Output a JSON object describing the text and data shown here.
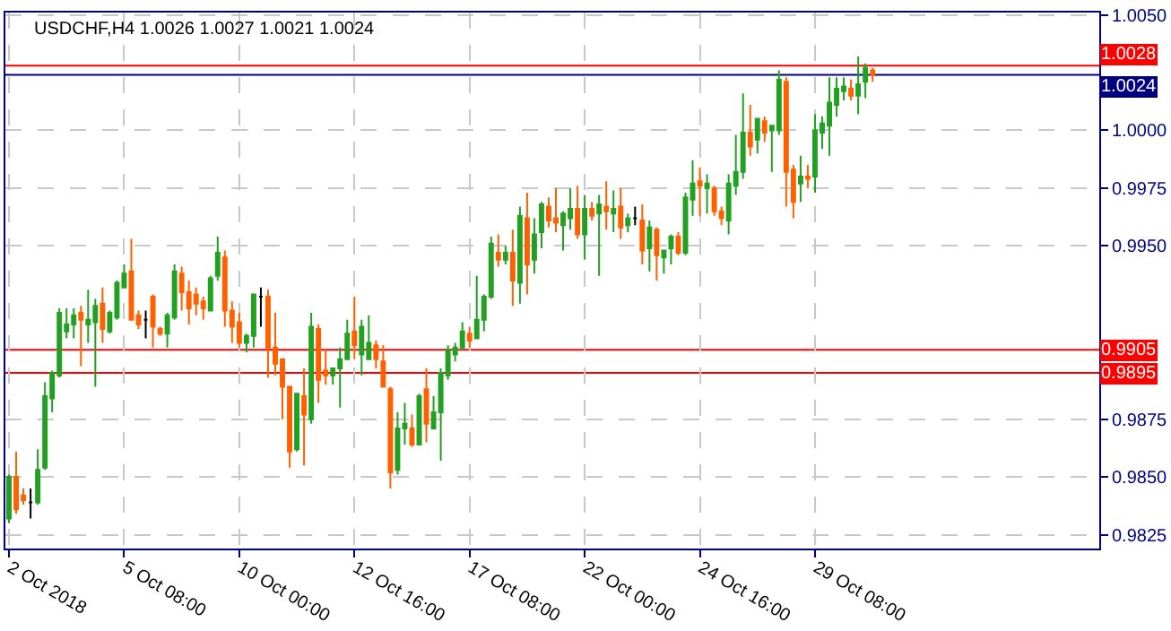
{
  "chart_data": {
    "type": "candlestick",
    "title": "USDCHF,H4 1.0026 1.0027 1.0021 1.0024",
    "categories": [
      "2 Oct 2018",
      null,
      null,
      null,
      null,
      null,
      null,
      null,
      null,
      null,
      null,
      null,
      null,
      null,
      null,
      null,
      "5 Oct 08:00",
      null,
      null,
      null,
      null,
      null,
      null,
      null,
      null,
      null,
      null,
      null,
      null,
      null,
      null,
      null,
      "10 Oct 00:00",
      null,
      null,
      null,
      null,
      null,
      null,
      null,
      null,
      null,
      null,
      null,
      null,
      null,
      null,
      null,
      "12 Oct 16:00",
      null,
      null,
      null,
      null,
      null,
      null,
      null,
      null,
      null,
      null,
      null,
      null,
      null,
      null,
      null,
      "17 Oct 08:00",
      null,
      null,
      null,
      null,
      null,
      null,
      null,
      null,
      null,
      null,
      null,
      null,
      null,
      null,
      null,
      "22 Oct 00:00",
      null,
      null,
      null,
      null,
      null,
      null,
      null,
      null,
      null,
      null,
      null,
      null,
      null,
      null,
      null,
      "24 Oct 16:00",
      null,
      null,
      null,
      null,
      null,
      null,
      null,
      null,
      null,
      null,
      null,
      null,
      null,
      null,
      null,
      "29 Oct 08:00",
      null,
      null,
      null,
      null,
      null,
      null,
      null,
      null,
      null,
      null,
      null,
      null,
      null,
      null,
      null,
      null,
      null,
      null,
      null,
      null,
      null,
      null,
      null,
      null,
      null,
      null,
      null,
      null,
      null,
      null,
      null,
      null,
      null,
      null,
      null,
      null,
      null,
      null,
      null
    ],
    "ohlc": [
      [
        0.9832,
        0.9851,
        0.983,
        0.985
      ],
      [
        0.985,
        0.9861,
        0.9834,
        0.9836
      ],
      [
        0.9842,
        0.9845,
        0.9838,
        0.984
      ],
      [
        0.9839,
        0.9845,
        0.9832,
        0.9839
      ],
      [
        0.9839,
        0.9862,
        0.9838,
        0.9853
      ],
      [
        0.9854,
        0.9891,
        0.9853,
        0.9885
      ],
      [
        0.9884,
        0.9896,
        0.9878,
        0.9895
      ],
      [
        0.9894,
        0.9923,
        0.9893,
        0.9921
      ],
      [
        0.9913,
        0.9923,
        0.991,
        0.9916
      ],
      [
        0.9916,
        0.9923,
        0.991,
        0.992
      ],
      [
        0.9921,
        0.9924,
        0.9898,
        0.9918
      ],
      [
        0.9916,
        0.9931,
        0.9908,
        0.9918
      ],
      [
        0.9917,
        0.9927,
        0.9889,
        0.9924
      ],
      [
        0.9925,
        0.9932,
        0.9908,
        0.9914
      ],
      [
        0.9913,
        0.9922,
        0.9912,
        0.9921
      ],
      [
        0.9919,
        0.9935,
        0.9918,
        0.9934
      ],
      [
        0.9932,
        0.9942,
        0.9932,
        0.9938
      ],
      [
        0.9939,
        0.9953,
        0.9918,
        0.9918
      ],
      [
        0.992,
        0.9922,
        0.9914,
        0.9916
      ],
      [
        0.9918,
        0.9922,
        0.991,
        0.9918
      ],
      [
        0.9928,
        0.9929,
        0.9906,
        0.9915
      ],
      [
        0.9914,
        0.9915,
        0.9911,
        0.9912
      ],
      [
        0.9912,
        0.9921,
        0.9906,
        0.992
      ],
      [
        0.9919,
        0.9942,
        0.9918,
        0.9939
      ],
      [
        0.9938,
        0.9941,
        0.9922,
        0.993
      ],
      [
        0.993,
        0.9935,
        0.9916,
        0.9923
      ],
      [
        0.9929,
        0.9932,
        0.992,
        0.9925
      ],
      [
        0.9926,
        0.9928,
        0.9918,
        0.9923
      ],
      [
        0.9922,
        0.9937,
        0.9922,
        0.9936
      ],
      [
        0.9937,
        0.9954,
        0.9935,
        0.9947
      ],
      [
        0.9945,
        0.9948,
        0.9915,
        0.9922
      ],
      [
        0.9922,
        0.9926,
        0.9908,
        0.9915
      ],
      [
        0.9917,
        0.9921,
        0.9906,
        0.9908
      ],
      [
        0.9908,
        0.9912,
        0.9904,
        0.9911
      ],
      [
        0.9911,
        0.9929,
        0.9906,
        0.9929
      ],
      [
        0.9928,
        0.9932,
        0.9915,
        0.9928
      ],
      [
        0.9928,
        0.9931,
        0.9893,
        0.9906
      ],
      [
        0.9906,
        0.9921,
        0.9894,
        0.9899
      ],
      [
        0.9901,
        0.9901,
        0.9875,
        0.9889
      ],
      [
        0.9889,
        0.9889,
        0.9854,
        0.9861
      ],
      [
        0.9862,
        0.9886,
        0.9861,
        0.9886
      ],
      [
        0.9885,
        0.9897,
        0.9855,
        0.9877
      ],
      [
        0.9875,
        0.9921,
        0.9873,
        0.9915
      ],
      [
        0.9914,
        0.9916,
        0.9882,
        0.9892
      ],
      [
        0.9896,
        0.9905,
        0.989,
        0.9894
      ],
      [
        0.9894,
        0.9897,
        0.989,
        0.9897
      ],
      [
        0.9897,
        0.9906,
        0.988,
        0.9901
      ],
      [
        0.9901,
        0.9918,
        0.9901,
        0.9912
      ],
      [
        0.9913,
        0.9928,
        0.9901,
        0.9907
      ],
      [
        0.9903,
        0.9918,
        0.9894,
        0.9915
      ],
      [
        0.9901,
        0.992,
        0.9901,
        0.9908
      ],
      [
        0.9907,
        0.9909,
        0.9897,
        0.9901
      ],
      [
        0.99,
        0.9907,
        0.9889,
        0.9889
      ],
      [
        0.9888,
        0.9889,
        0.9845,
        0.9852
      ],
      [
        0.9853,
        0.9878,
        0.9851,
        0.9871
      ],
      [
        0.9871,
        0.9882,
        0.9864,
        0.9873
      ],
      [
        0.9871,
        0.9877,
        0.9863,
        0.9864
      ],
      [
        0.9864,
        0.9886,
        0.9864,
        0.9885
      ],
      [
        0.9888,
        0.9897,
        0.9865,
        0.9873
      ],
      [
        0.9871,
        0.9885,
        0.9871,
        0.9878
      ],
      [
        0.9878,
        0.9897,
        0.9857,
        0.9895
      ],
      [
        0.9894,
        0.9907,
        0.9892,
        0.9905
      ],
      [
        0.9903,
        0.9908,
        0.99,
        0.9906
      ],
      [
        0.9906,
        0.9917,
        0.9905,
        0.9913
      ],
      [
        0.9912,
        0.9915,
        0.9906,
        0.9909
      ],
      [
        0.991,
        0.9937,
        0.991,
        0.9918
      ],
      [
        0.9918,
        0.9929,
        0.9913,
        0.9928
      ],
      [
        0.9928,
        0.9954,
        0.9927,
        0.9951
      ],
      [
        0.9947,
        0.9955,
        0.9941,
        0.9944
      ],
      [
        0.9944,
        0.995,
        0.9942,
        0.9947
      ],
      [
        0.9947,
        0.9957,
        0.9924,
        0.9935
      ],
      [
        0.9934,
        0.9967,
        0.9925,
        0.9963
      ],
      [
        0.9962,
        0.9973,
        0.9929,
        0.9942
      ],
      [
        0.9944,
        0.9962,
        0.9938,
        0.9955
      ],
      [
        0.9956,
        0.9969,
        0.9949,
        0.9968
      ],
      [
        0.9967,
        0.9971,
        0.9958,
        0.9961
      ],
      [
        0.9962,
        0.9975,
        0.9956,
        0.996
      ],
      [
        0.9959,
        0.9965,
        0.9948,
        0.9964
      ],
      [
        0.9962,
        0.9975,
        0.9957,
        0.9966
      ],
      [
        0.9966,
        0.9976,
        0.9953,
        0.9955
      ],
      [
        0.9955,
        0.9972,
        0.9944,
        0.9966
      ],
      [
        0.9966,
        0.9969,
        0.9961,
        0.9963
      ],
      [
        0.9964,
        0.9972,
        0.9937,
        0.9968
      ],
      [
        0.9967,
        0.9978,
        0.9957,
        0.9965
      ],
      [
        0.9964,
        0.9974,
        0.9956,
        0.9966
      ],
      [
        0.9967,
        0.9975,
        0.9953,
        0.9958
      ],
      [
        0.9959,
        0.9964,
        0.9956,
        0.9962
      ],
      [
        0.9962,
        0.9967,
        0.9959,
        0.9962
      ],
      [
        0.9961,
        0.9968,
        0.9942,
        0.9948
      ],
      [
        0.9949,
        0.9961,
        0.9939,
        0.9958
      ],
      [
        0.9957,
        0.9958,
        0.9935,
        0.9946
      ],
      [
        0.9945,
        0.9948,
        0.9938,
        0.9948
      ],
      [
        0.9949,
        0.9955,
        0.9942,
        0.9954
      ],
      [
        0.9954,
        0.9956,
        0.9946,
        0.9947
      ],
      [
        0.9947,
        0.9973,
        0.9946,
        0.9971
      ],
      [
        0.997,
        0.9987,
        0.9963,
        0.9977
      ],
      [
        0.9978,
        0.9984,
        0.9963,
        0.9976
      ],
      [
        0.9975,
        0.9981,
        0.9964,
        0.9977
      ],
      [
        0.9975,
        0.9976,
        0.9963,
        0.9965
      ],
      [
        0.9965,
        0.9967,
        0.9959,
        0.9962
      ],
      [
        0.9961,
        0.9981,
        0.9955,
        0.9977
      ],
      [
        0.9976,
        0.9998,
        0.9972,
        0.9982
      ],
      [
        0.9982,
        1.0016,
        0.9979,
        0.9999
      ],
      [
        0.9999,
        1.0011,
        0.9989,
        0.9993
      ],
      [
        0.9996,
        1.0005,
        0.999,
        1.0005
      ],
      [
        1.0004,
        1.0006,
        0.9995,
        0.9999
      ],
      [
        1.0,
        1.0002,
        0.9982,
        1.0002
      ],
      [
        1.0,
        1.0026,
        0.9998,
        1.0022
      ],
      [
        1.0021,
        1.0023,
        0.9967,
        0.9982
      ],
      [
        0.9983,
        0.9985,
        0.9962,
        0.9969
      ],
      [
        0.9977,
        0.9989,
        0.9969,
        0.998
      ],
      [
        0.998,
        0.9985,
        0.9975,
        0.9979
      ],
      [
        0.998,
        1.0007,
        0.9973,
        1.0
      ],
      [
        0.9999,
        1.0006,
        0.9992,
        1.0003
      ],
      [
        1.0002,
        1.0023,
        0.9989,
        1.0012
      ],
      [
        1.0011,
        1.0023,
        1.0006,
        1.0018
      ],
      [
        1.0017,
        1.0023,
        1.0013,
        1.0019
      ],
      [
        1.0018,
        1.0022,
        1.0013,
        1.0015
      ],
      [
        1.0015,
        1.0032,
        1.0007,
        1.002
      ],
      [
        1.0021,
        1.0029,
        1.0014,
        1.0027
      ],
      [
        1.0026,
        1.0027,
        1.0021,
        1.0024
      ],
      null,
      null,
      null,
      null,
      null,
      null,
      null,
      null,
      null,
      null,
      null,
      null,
      null,
      null,
      null,
      null,
      null,
      null,
      null,
      null,
      null,
      null,
      null,
      null,
      null,
      null,
      null,
      null,
      null,
      null,
      null
    ],
    "colors": [
      "#22a022",
      "#ff6000",
      "#ff6000",
      "#000000",
      "#22a022",
      "#22a022",
      "#22a022",
      "#22a022",
      "#22a022",
      "#22a022",
      "#ff6000",
      "#22a022",
      "#22a022",
      "#ff6000",
      "#22a022",
      "#22a022",
      "#22a022",
      "#ff6000",
      "#ff6000",
      "#000000",
      "#ff6000",
      "#ff6000",
      "#22a022",
      "#22a022",
      "#ff6000",
      "#ff6000",
      "#ff6000",
      "#ff6000",
      "#22a022",
      "#22a022",
      "#ff6000",
      "#ff6000",
      "#ff6000",
      "#22a022",
      "#22a022",
      "#000000",
      "#ff6000",
      "#ff6000",
      "#ff6000",
      "#ff6000",
      "#22a022",
      "#ff6000",
      "#22a022",
      "#ff6000",
      "#ff6000",
      "#22a022",
      "#22a022",
      "#22a022",
      "#ff6000",
      "#22a022",
      "#22a022",
      "#ff6000",
      "#ff6000",
      "#ff6000",
      "#22a022",
      "#22a022",
      "#ff6000",
      "#22a022",
      "#ff6000",
      "#22a022",
      "#22a022",
      "#22a022",
      "#22a022",
      "#22a022",
      "#ff6000",
      "#22a022",
      "#22a022",
      "#22a022",
      "#ff6000",
      "#22a022",
      "#ff6000",
      "#22a022",
      "#ff6000",
      "#22a022",
      "#22a022",
      "#ff6000",
      "#ff6000",
      "#22a022",
      "#22a022",
      "#ff6000",
      "#22a022",
      "#ff6000",
      "#22a022",
      "#ff6000",
      "#22a022",
      "#ff6000",
      "#22a022",
      "#000000",
      "#ff6000",
      "#22a022",
      "#ff6000",
      "#22a022",
      "#22a022",
      "#ff6000",
      "#22a022",
      "#22a022",
      "#ff6000",
      "#22a022",
      "#ff6000",
      "#ff6000",
      "#22a022",
      "#22a022",
      "#22a022",
      "#ff6000",
      "#22a022",
      "#ff6000",
      "#22a022",
      "#22a022",
      "#ff6000",
      "#ff6000",
      "#22a022",
      "#ff6000",
      "#22a022",
      "#22a022",
      "#22a022",
      "#22a022",
      "#22a022",
      "#ff6000",
      "#22a022",
      "#22a022",
      "#ff6000",
      null,
      null,
      null,
      null,
      null,
      null,
      null,
      null,
      null,
      null,
      null,
      null,
      null,
      null,
      null,
      null,
      null,
      null,
      null,
      null,
      null,
      null,
      null,
      null,
      null,
      null,
      null,
      null,
      null,
      null,
      null
    ],
    "ylim": [
      0.9819,
      1.0051
    ],
    "yticks": [
      {
        "value": 0.9825,
        "label": "0.9825"
      },
      {
        "value": 0.985,
        "label": "0.9850"
      },
      {
        "value": 0.9875,
        "label": "0.9875"
      },
      {
        "value": 0.995,
        "label": "0.9950"
      },
      {
        "value": 0.9975,
        "label": "0.9975"
      },
      {
        "value": 1.0,
        "label": "1.0000"
      },
      {
        "value": 1.005,
        "label": "1.0050"
      }
    ],
    "ref_lines": [
      {
        "axis": "y",
        "value": 0.9905,
        "label": "0.9905",
        "color": "#ff0000"
      },
      {
        "axis": "y",
        "value": 0.9895,
        "label": "0.9895",
        "color": "#ff0000"
      },
      {
        "axis": "y",
        "value": 1.0028,
        "label": "1.0028",
        "color": "#ff0000"
      },
      {
        "axis": "y",
        "value": 1.0024,
        "label": "1.0024",
        "color": "#000080"
      }
    ],
    "grid": true
  }
}
